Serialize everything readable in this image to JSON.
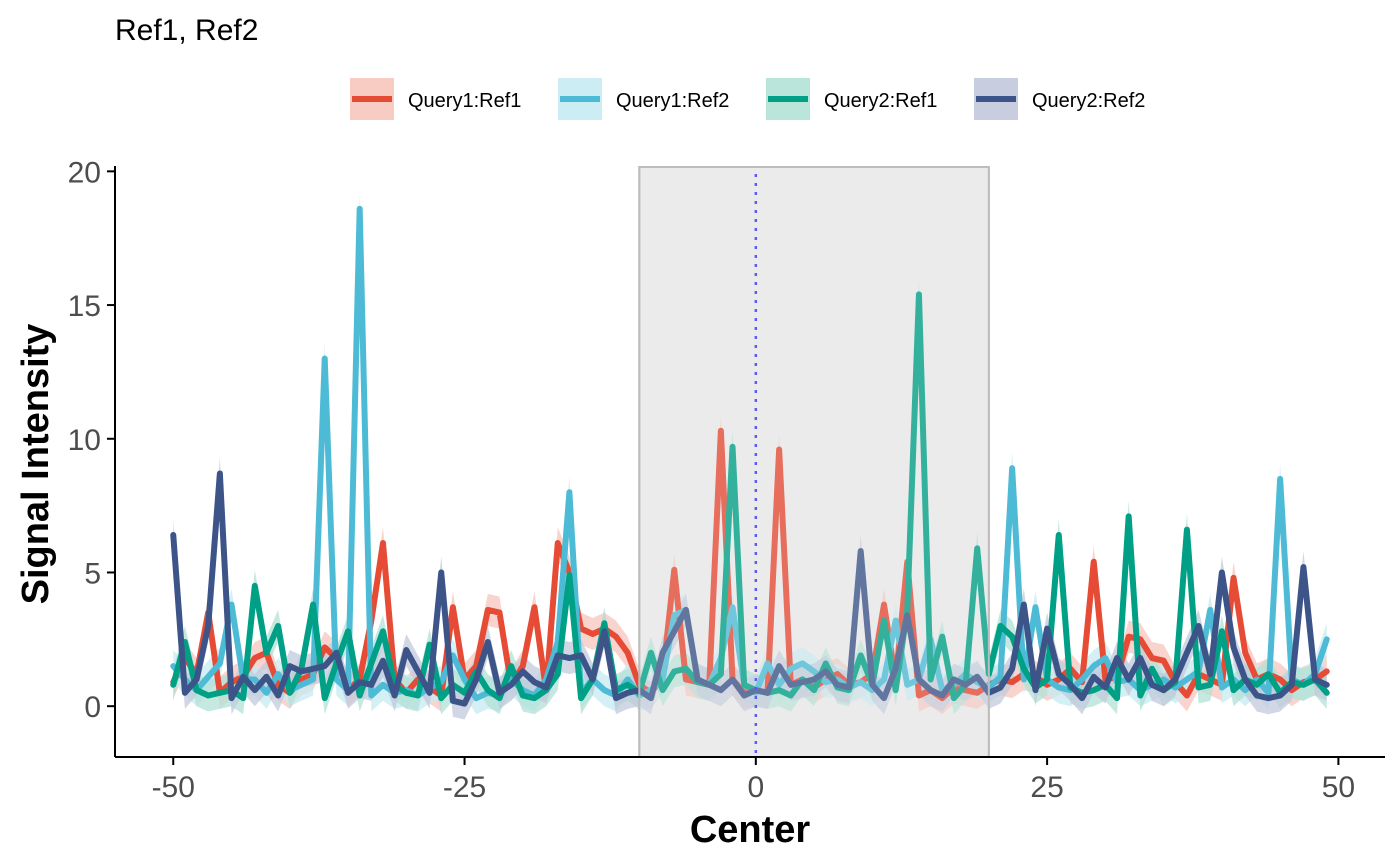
{
  "chart_data": {
    "type": "line",
    "title": "Ref1, Ref2",
    "xlabel": "Center",
    "ylabel": "Signal Intensity",
    "xlim": [
      -55,
      54
    ],
    "ylim": [
      -1.9,
      20.2
    ],
    "xticks": [
      -50,
      -25,
      0,
      25,
      50
    ],
    "yticks": [
      0,
      5,
      10,
      15,
      20
    ],
    "grid": false,
    "legend_position": "top",
    "highlight_region": {
      "x": [
        -10,
        20
      ],
      "color": "#ebebeb"
    },
    "center_line": {
      "x": 0,
      "color": "#3333ff"
    },
    "band_halfwidth": 0.6,
    "x": [
      -50,
      -49,
      -48,
      -47,
      -46,
      -45,
      -44,
      -43,
      -42,
      -41,
      -40,
      -39,
      -38,
      -37,
      -36,
      -35,
      -34,
      -33,
      -32,
      -31,
      -30,
      -29,
      -28,
      -27,
      -26,
      -25,
      -24,
      -23,
      -22,
      -21,
      -20,
      -19,
      -18,
      -17,
      -16,
      -15,
      -14,
      -13,
      -12,
      -11,
      -10,
      -9,
      -8,
      -7,
      -6,
      -5,
      -4,
      -3,
      -2,
      -1,
      0,
      1,
      2,
      3,
      4,
      5,
      6,
      7,
      8,
      9,
      10,
      11,
      12,
      13,
      14,
      15,
      16,
      17,
      18,
      19,
      20,
      21,
      22,
      23,
      24,
      25,
      26,
      27,
      28,
      29,
      30,
      31,
      32,
      33,
      34,
      35,
      36,
      37,
      38,
      39,
      40,
      41,
      42,
      43,
      44,
      45,
      46,
      47,
      48,
      49
    ],
    "series": [
      {
        "name": "Query1:Ref1",
        "color": "#e64b35",
        "fill": "#f7c6bd",
        "values": [
          0.9,
          1.8,
          1.2,
          3.5,
          0.5,
          0.9,
          1.1,
          1.8,
          2.0,
          0.8,
          0.5,
          1.0,
          1.2,
          2.2,
          1.8,
          0.6,
          1.0,
          3.2,
          6.1,
          1.0,
          0.5,
          1.0,
          0.7,
          0.4,
          3.7,
          1.0,
          1.5,
          3.6,
          3.5,
          0.8,
          1.5,
          3.7,
          0.6,
          6.1,
          5.0,
          2.9,
          2.7,
          2.9,
          2.6,
          2.0,
          0.8,
          0.5,
          1.1,
          5.1,
          1.0,
          0.9,
          0.8,
          10.3,
          1.0,
          0.5,
          0.6,
          0.5,
          9.6,
          0.8,
          1.0,
          0.7,
          1.0,
          1.2,
          0.8,
          0.9,
          1.2,
          3.8,
          1.0,
          5.4,
          0.4,
          0.6,
          0.3,
          0.7,
          0.6,
          0.5,
          0.8,
          1.0,
          0.9,
          1.2,
          1.1,
          0.8,
          1.0,
          1.4,
          0.9,
          5.4,
          1.0,
          1.1,
          2.6,
          2.5,
          1.8,
          1.7,
          0.9,
          0.4,
          1.2,
          1.0,
          0.8,
          4.8,
          2.0,
          1.0,
          1.2,
          1.0,
          0.6,
          0.9,
          1.0,
          1.3
        ],
        "highlight_values": []
      },
      {
        "name": "Query1:Ref2",
        "color": "#4dbbd5",
        "fill": "#c5ebf2",
        "values": [
          1.5,
          1.0,
          0.6,
          1.1,
          1.6,
          3.8,
          1.0,
          1.0,
          0.5,
          1.2,
          0.6,
          0.8,
          1.0,
          13.0,
          1.0,
          0.6,
          18.6,
          0.4,
          0.8,
          0.5,
          0.6,
          0.4,
          0.7,
          0.9,
          1.9,
          1.0,
          0.3,
          0.5,
          0.4,
          1.0,
          0.6,
          0.4,
          1.0,
          2.4,
          8.0,
          0.5,
          1.0,
          0.6,
          0.4,
          1.0,
          0.4,
          0.6,
          1.0,
          3.4,
          3.6,
          1.0,
          0.8,
          1.8,
          3.7,
          0.8,
          0.5,
          1.6,
          0.8,
          1.4,
          1.6,
          1.3,
          0.9,
          1.0,
          0.7,
          0.9,
          0.6,
          1.0,
          3.2,
          0.8,
          1.0,
          2.5,
          0.6,
          0.8,
          1.2,
          0.9,
          0.7,
          1.1,
          8.9,
          1.0,
          3.7,
          1.0,
          0.7,
          0.6,
          1.0,
          1.5,
          1.8,
          0.9,
          1.0,
          0.6,
          0.8,
          1.0,
          0.7,
          1.0,
          1.3,
          3.6,
          0.7,
          1.0,
          0.6,
          1.0,
          0.5,
          8.5,
          1.0,
          0.8,
          1.2,
          2.5
        ],
        "highlight_values": []
      },
      {
        "name": "Query2:Ref1",
        "color": "#00a087",
        "fill": "#b2e2d6",
        "values": [
          0.8,
          2.4,
          0.6,
          0.4,
          0.5,
          0.6,
          0.3,
          4.5,
          2.0,
          3.0,
          0.5,
          1.4,
          3.8,
          0.3,
          1.6,
          2.8,
          0.4,
          1.6,
          2.8,
          0.8,
          0.5,
          0.4,
          2.3,
          0.3,
          0.8,
          0.5,
          1.3,
          0.6,
          0.3,
          1.5,
          0.4,
          0.3,
          0.6,
          1.2,
          4.9,
          0.3,
          1.0,
          3.1,
          0.6,
          0.8,
          0.5,
          2.0,
          0.6,
          1.3,
          1.4,
          0.9,
          0.8,
          1.2,
          9.7,
          0.8,
          0.6,
          0.5,
          0.6,
          0.4,
          1.0,
          0.6,
          1.6,
          0.7,
          0.6,
          1.9,
          0.8,
          3.2,
          0.6,
          3.6,
          15.4,
          1.0,
          2.6,
          0.3,
          0.8,
          5.9,
          1.2,
          3.0,
          2.6,
          1.4,
          0.7,
          1.0,
          6.4,
          0.7,
          0.5,
          0.6,
          0.8,
          0.3,
          7.1,
          0.4,
          1.4,
          0.6,
          0.9,
          6.6,
          0.7,
          0.8,
          2.8,
          0.6,
          1.0,
          0.8,
          1.2,
          0.5,
          0.9,
          0.8,
          1.0,
          0.5
        ],
        "highlight_values": []
      },
      {
        "name": "Query2:Ref2",
        "color": "#3c5488",
        "fill": "#c2c9db",
        "values": [
          6.4,
          0.5,
          1.0,
          3.0,
          8.7,
          0.3,
          1.1,
          0.6,
          1.1,
          0.4,
          1.5,
          1.3,
          1.4,
          1.5,
          2.0,
          0.5,
          0.9,
          0.8,
          1.7,
          0.4,
          2.1,
          1.3,
          0.5,
          5.0,
          0.2,
          0.1,
          1.0,
          2.4,
          0.5,
          0.8,
          1.3,
          0.9,
          0.7,
          1.9,
          1.8,
          1.9,
          1.0,
          2.8,
          0.3,
          0.5,
          0.6,
          0.3,
          2.0,
          2.8,
          3.6,
          1.0,
          0.8,
          0.6,
          1.0,
          0.4,
          0.6,
          0.5,
          1.5,
          0.8,
          0.9,
          1.0,
          1.3,
          0.8,
          0.7,
          5.8,
          0.8,
          0.3,
          1.4,
          3.4,
          1.0,
          0.6,
          0.4,
          1.0,
          0.8,
          1.1,
          0.5,
          0.7,
          1.4,
          3.8,
          0.6,
          2.9,
          1.2,
          0.8,
          0.3,
          1.1,
          0.7,
          1.8,
          1.0,
          1.8,
          0.8,
          0.6,
          1.0,
          2.0,
          3.0,
          1.2,
          5.0,
          2.2,
          1.0,
          0.4,
          0.3,
          0.4,
          0.8,
          5.2,
          1.0,
          0.8
        ],
        "highlight_values": []
      }
    ]
  }
}
